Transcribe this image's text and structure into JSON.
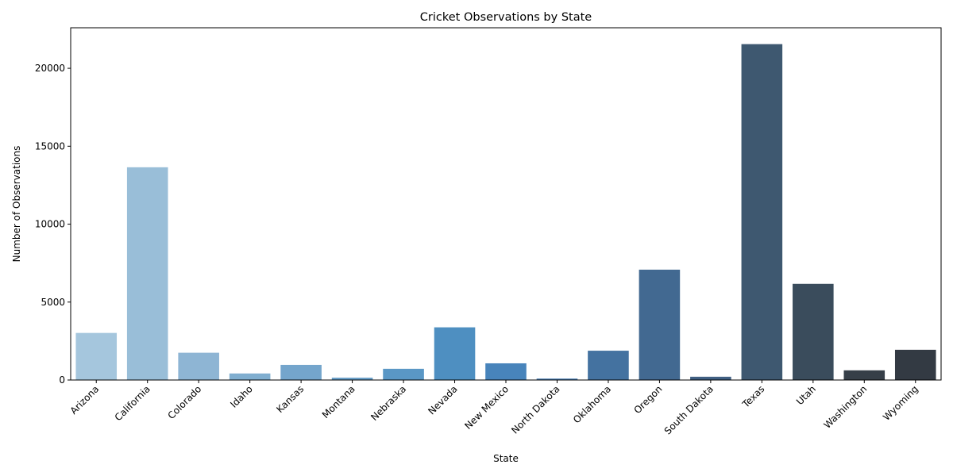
{
  "chart_data": {
    "type": "bar",
    "title": "Cricket Observations by State",
    "xlabel": "State",
    "ylabel": "Number of Observations",
    "categories": [
      "Arizona",
      "California",
      "Colorado",
      "Idaho",
      "Kansas",
      "Montana",
      "Nebraska",
      "Nevada",
      "New Mexico",
      "North Dakota",
      "Oklahoma",
      "Oregon",
      "South Dakota",
      "Texas",
      "Utah",
      "Washington",
      "Wyoming"
    ],
    "values": [
      3020,
      13650,
      1750,
      420,
      970,
      150,
      720,
      3380,
      1070,
      90,
      1880,
      7080,
      210,
      21550,
      6170,
      620,
      1940
    ],
    "ylim": [
      0,
      22600
    ],
    "yticks": [
      0,
      5000,
      10000,
      15000,
      20000
    ],
    "grid": false,
    "legend": "none",
    "colors": [
      "#a5c6dd",
      "#99bed8",
      "#8eb5d4",
      "#80aed0",
      "#74a5cc",
      "#679ec8",
      "#5a97c5",
      "#4e8fc1",
      "#4884bb",
      "#457aaf",
      "#4472a0",
      "#426991",
      "#416083",
      "#3e5870",
      "#3a4c5c",
      "#363f48",
      "#333a43"
    ]
  }
}
